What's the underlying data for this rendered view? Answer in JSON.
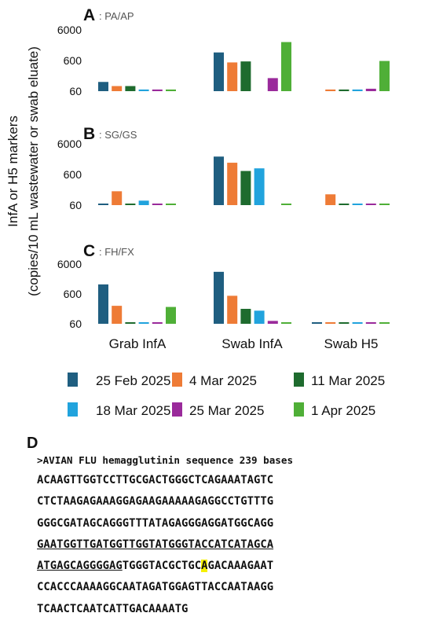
{
  "chart_data": {
    "type": "bar",
    "y_scale": "log",
    "ylim": [
      60,
      6000
    ],
    "ytick_labels": [
      "6000",
      "600",
      "60"
    ],
    "ylabel_lines": [
      "InfA or H5 markers",
      "(copies/10 mL wastewater or swab eluate)"
    ],
    "categories": [
      "Grab InfA",
      "Swab InfA",
      "Swab H5"
    ],
    "legend_position": "bottom",
    "series": [
      {
        "name": "25 Feb 2025",
        "color": "#1f5e80"
      },
      {
        "name": "4 Mar 2025",
        "color": "#ee7b36"
      },
      {
        "name": "11 Mar 2025",
        "color": "#1e6b2e"
      },
      {
        "name": "18 Mar 2025",
        "color": "#21a3dd"
      },
      {
        "name": "25 Mar 2025",
        "color": "#9a2a9b"
      },
      {
        "name": "1 Apr 2025",
        "color": "#4faf37"
      }
    ],
    "panels": [
      {
        "letter": "A",
        "title": ": PA/AP",
        "values": [
          [
            120,
            88,
            88,
            68,
            68,
            68
          ],
          [
            1100,
            520,
            560,
            160,
            2400
          ],
          [
            68,
            68,
            68,
            72,
            580
          ]
        ],
        "grouped": [
          [
            120,
            88,
            88,
            68,
            68,
            68
          ],
          [
            1100,
            520,
            560,
            null,
            160,
            2400
          ],
          [
            null,
            68,
            68,
            68,
            72,
            580
          ]
        ]
      },
      {
        "letter": "B",
        "title": ": SG/GS",
        "grouped": [
          [
            64,
            170,
            66,
            84,
            66,
            66
          ],
          [
            2300,
            1450,
            780,
            950,
            null,
            66
          ],
          [
            null,
            135,
            66,
            66,
            66,
            66
          ]
        ]
      },
      {
        "letter": "C",
        "title": ": FH/FX",
        "grouped": [
          [
            1250,
            240,
            64,
            64,
            64,
            220
          ],
          [
            3300,
            520,
            190,
            165,
            75,
            66
          ],
          [
            64,
            64,
            64,
            64,
            64,
            64
          ]
        ]
      }
    ]
  },
  "panel_d": {
    "letter": "D",
    "header": ">AVIAN FLU hemagglutinin sequence 239 bases",
    "lines": [
      [
        {
          "t": "ACAAGTTGGTCCTTGCGACTGGGCTCAGAAATAGTC"
        }
      ],
      [
        {
          "t": "CTCTAAGAGAAAGGAGAAGAAAAAGAGGCCTGTTTG"
        }
      ],
      [
        {
          "t": "GGGCGATAGCAGGGTTTATAGAGGGAGGATGGCAGG"
        }
      ],
      [
        {
          "t": "GAATGGTTGATGGTTGGTATGGGTACCATCATAGCA",
          "u": true
        }
      ],
      [
        {
          "t": "ATGAGCAGGGGAG",
          "u": true
        },
        {
          "t": "TGGGTACGCTGC"
        },
        {
          "t": "A",
          "hl": true
        },
        {
          "t": "GACAAAGAAT"
        }
      ],
      [
        {
          "t": "CCACCCAAAAGGCAATAGATGGAGTTACCAATAAGG"
        }
      ],
      [
        {
          "t": "TCAACTCAATCATTGACAAAATG"
        }
      ]
    ]
  }
}
